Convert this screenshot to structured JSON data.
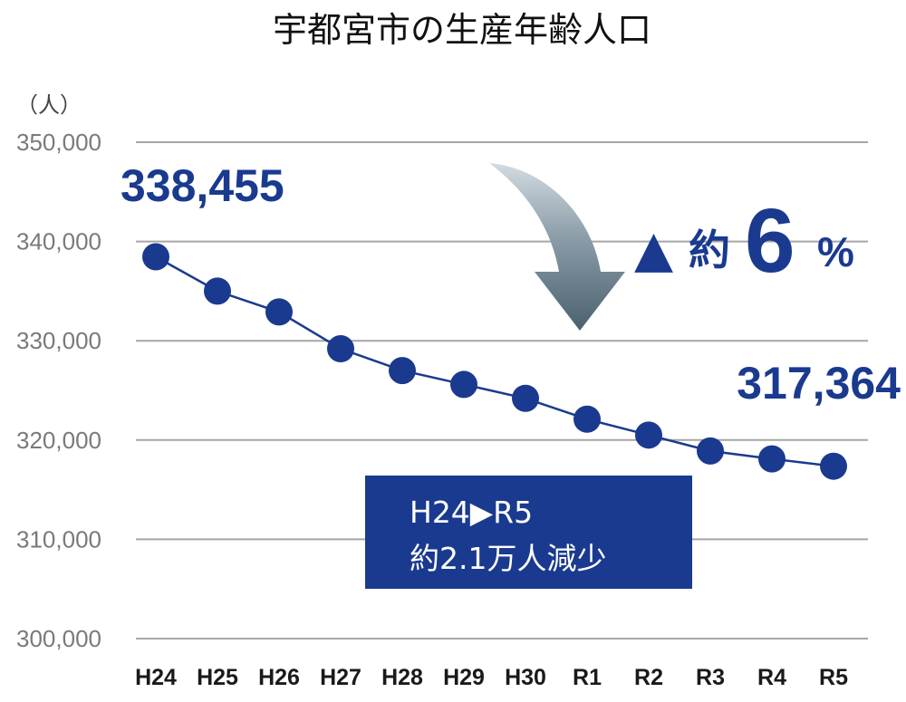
{
  "chart_data": {
    "type": "line",
    "title": "宇都宮市の生産年齢人口",
    "unit_label": "（人）",
    "categories": [
      "H24",
      "H25",
      "H26",
      "H27",
      "H28",
      "H29",
      "H30",
      "R1",
      "R2",
      "R3",
      "R4",
      "R5"
    ],
    "series": [
      {
        "values": [
          338455,
          335000,
          332900,
          329200,
          327000,
          325600,
          324200,
          322100,
          320500,
          318900,
          318100,
          317364
        ]
      }
    ],
    "ylim": [
      300000,
      350000
    ],
    "yticks": [
      300000,
      310000,
      320000,
      330000,
      340000,
      350000
    ],
    "ytick_labels": [
      "300,000",
      "310,000",
      "320,000",
      "330,000",
      "340,000",
      "350,000"
    ],
    "grid": true,
    "start_label": "338,455",
    "end_label": "317,364",
    "change_annotation": {
      "triangle": "▲",
      "prefix": "約",
      "value": "6",
      "suffix": "%"
    },
    "summary_box": {
      "line1": "H24▶R5",
      "line2": "約2.1万人減少"
    },
    "colors": {
      "series": "#1a3a8f",
      "box": "#1a3a8f",
      "grid": "#a6a6a6",
      "arrow_top": "#c9d1d8",
      "arrow_bottom": "#4d6470"
    }
  }
}
